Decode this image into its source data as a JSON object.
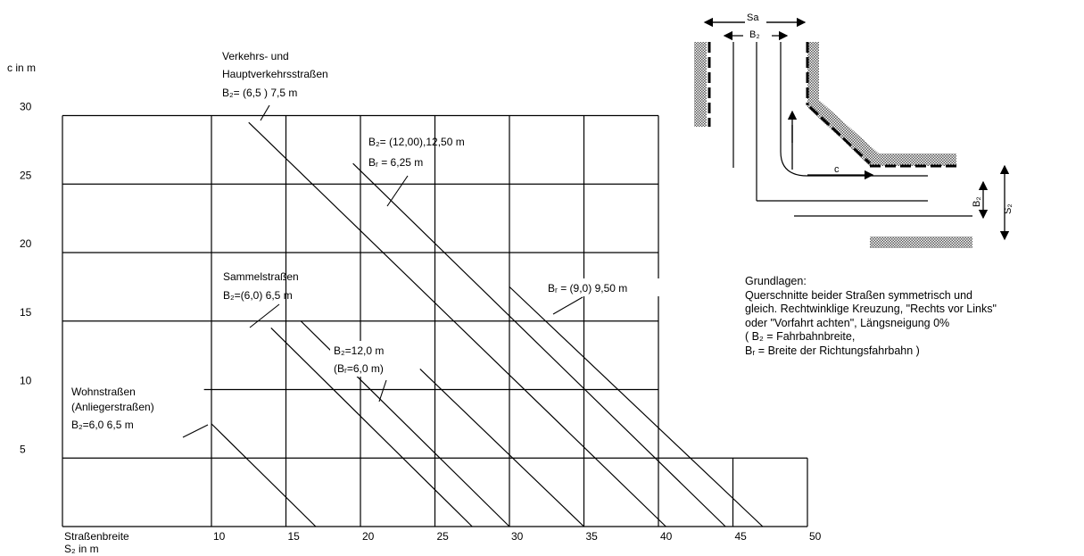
{
  "chart_data": {
    "type": "line",
    "ylabel": "c in m",
    "xlabel_line1": "Straßenbreite",
    "xlabel_line2": "S₂ in m",
    "x_ticks": [
      "10",
      "15",
      "20",
      "25",
      "30",
      "35",
      "40",
      "45",
      "50"
    ],
    "y_ticks": [
      "5",
      "10",
      "15",
      "20",
      "25",
      "30"
    ],
    "xlim": [
      0,
      50
    ],
    "ylim": [
      0,
      30
    ],
    "grid": true,
    "series": [
      {
        "points": [
          [
            10,
            7.5
          ],
          [
            17,
            0
          ]
        ]
      },
      {
        "points": [
          [
            16,
            15
          ],
          [
            30,
            0
          ]
        ]
      },
      {
        "points": [
          [
            12.5,
            29.5
          ],
          [
            40.5,
            0
          ]
        ]
      },
      {
        "points": [
          [
            19.5,
            26.5
          ],
          [
            44.5,
            0
          ]
        ]
      },
      {
        "points": [
          [
            14,
            14.5
          ],
          [
            27.5,
            0
          ]
        ]
      },
      {
        "points": [
          [
            24,
            11.5
          ],
          [
            35,
            0
          ]
        ]
      },
      {
        "points": [
          [
            30,
            17.5
          ],
          [
            47,
            0
          ]
        ]
      }
    ],
    "annotations": {
      "verkehr": [
        "Verkehrs- und",
        "Hauptverkehrsstraßen",
        "B₂= (6,5 ) 7,5 m"
      ],
      "bg12": [
        "B₂= (12,00),12,50 m",
        "Bᵣ = 6,25 m"
      ],
      "sammel": [
        "Sammelstraßen",
        "B₂=(6,0) 6,5 m"
      ],
      "br95": [
        "Bᵣ = (9,0) 9,50 m"
      ],
      "bg120": [
        "B₂=12,0 m",
        "(Bᵣ=6,0 m)"
      ],
      "wohn": [
        "Wohnstraßen",
        "(Anliegerstraßen)",
        "B₂=6,0 6,5 m"
      ]
    }
  },
  "diagram": {
    "sa_label": "Sa",
    "bg_label": "B₂",
    "c_label": "c",
    "b_label": "B₂",
    "s_label": "S₂"
  },
  "info": {
    "lines": [
      "Grundlagen:",
      "Querschnitte beider Straßen symmetrisch und",
      "gleich. Rechtwinklige Kreuzung, \"Rechts vor Links\"",
      "oder \"Vorfahrt achten\", Längsneigung 0%",
      "( B₂ = Fahrbahnbreite,",
      "Bᵣ = Breite der Richtungsfahrbahn )"
    ]
  }
}
